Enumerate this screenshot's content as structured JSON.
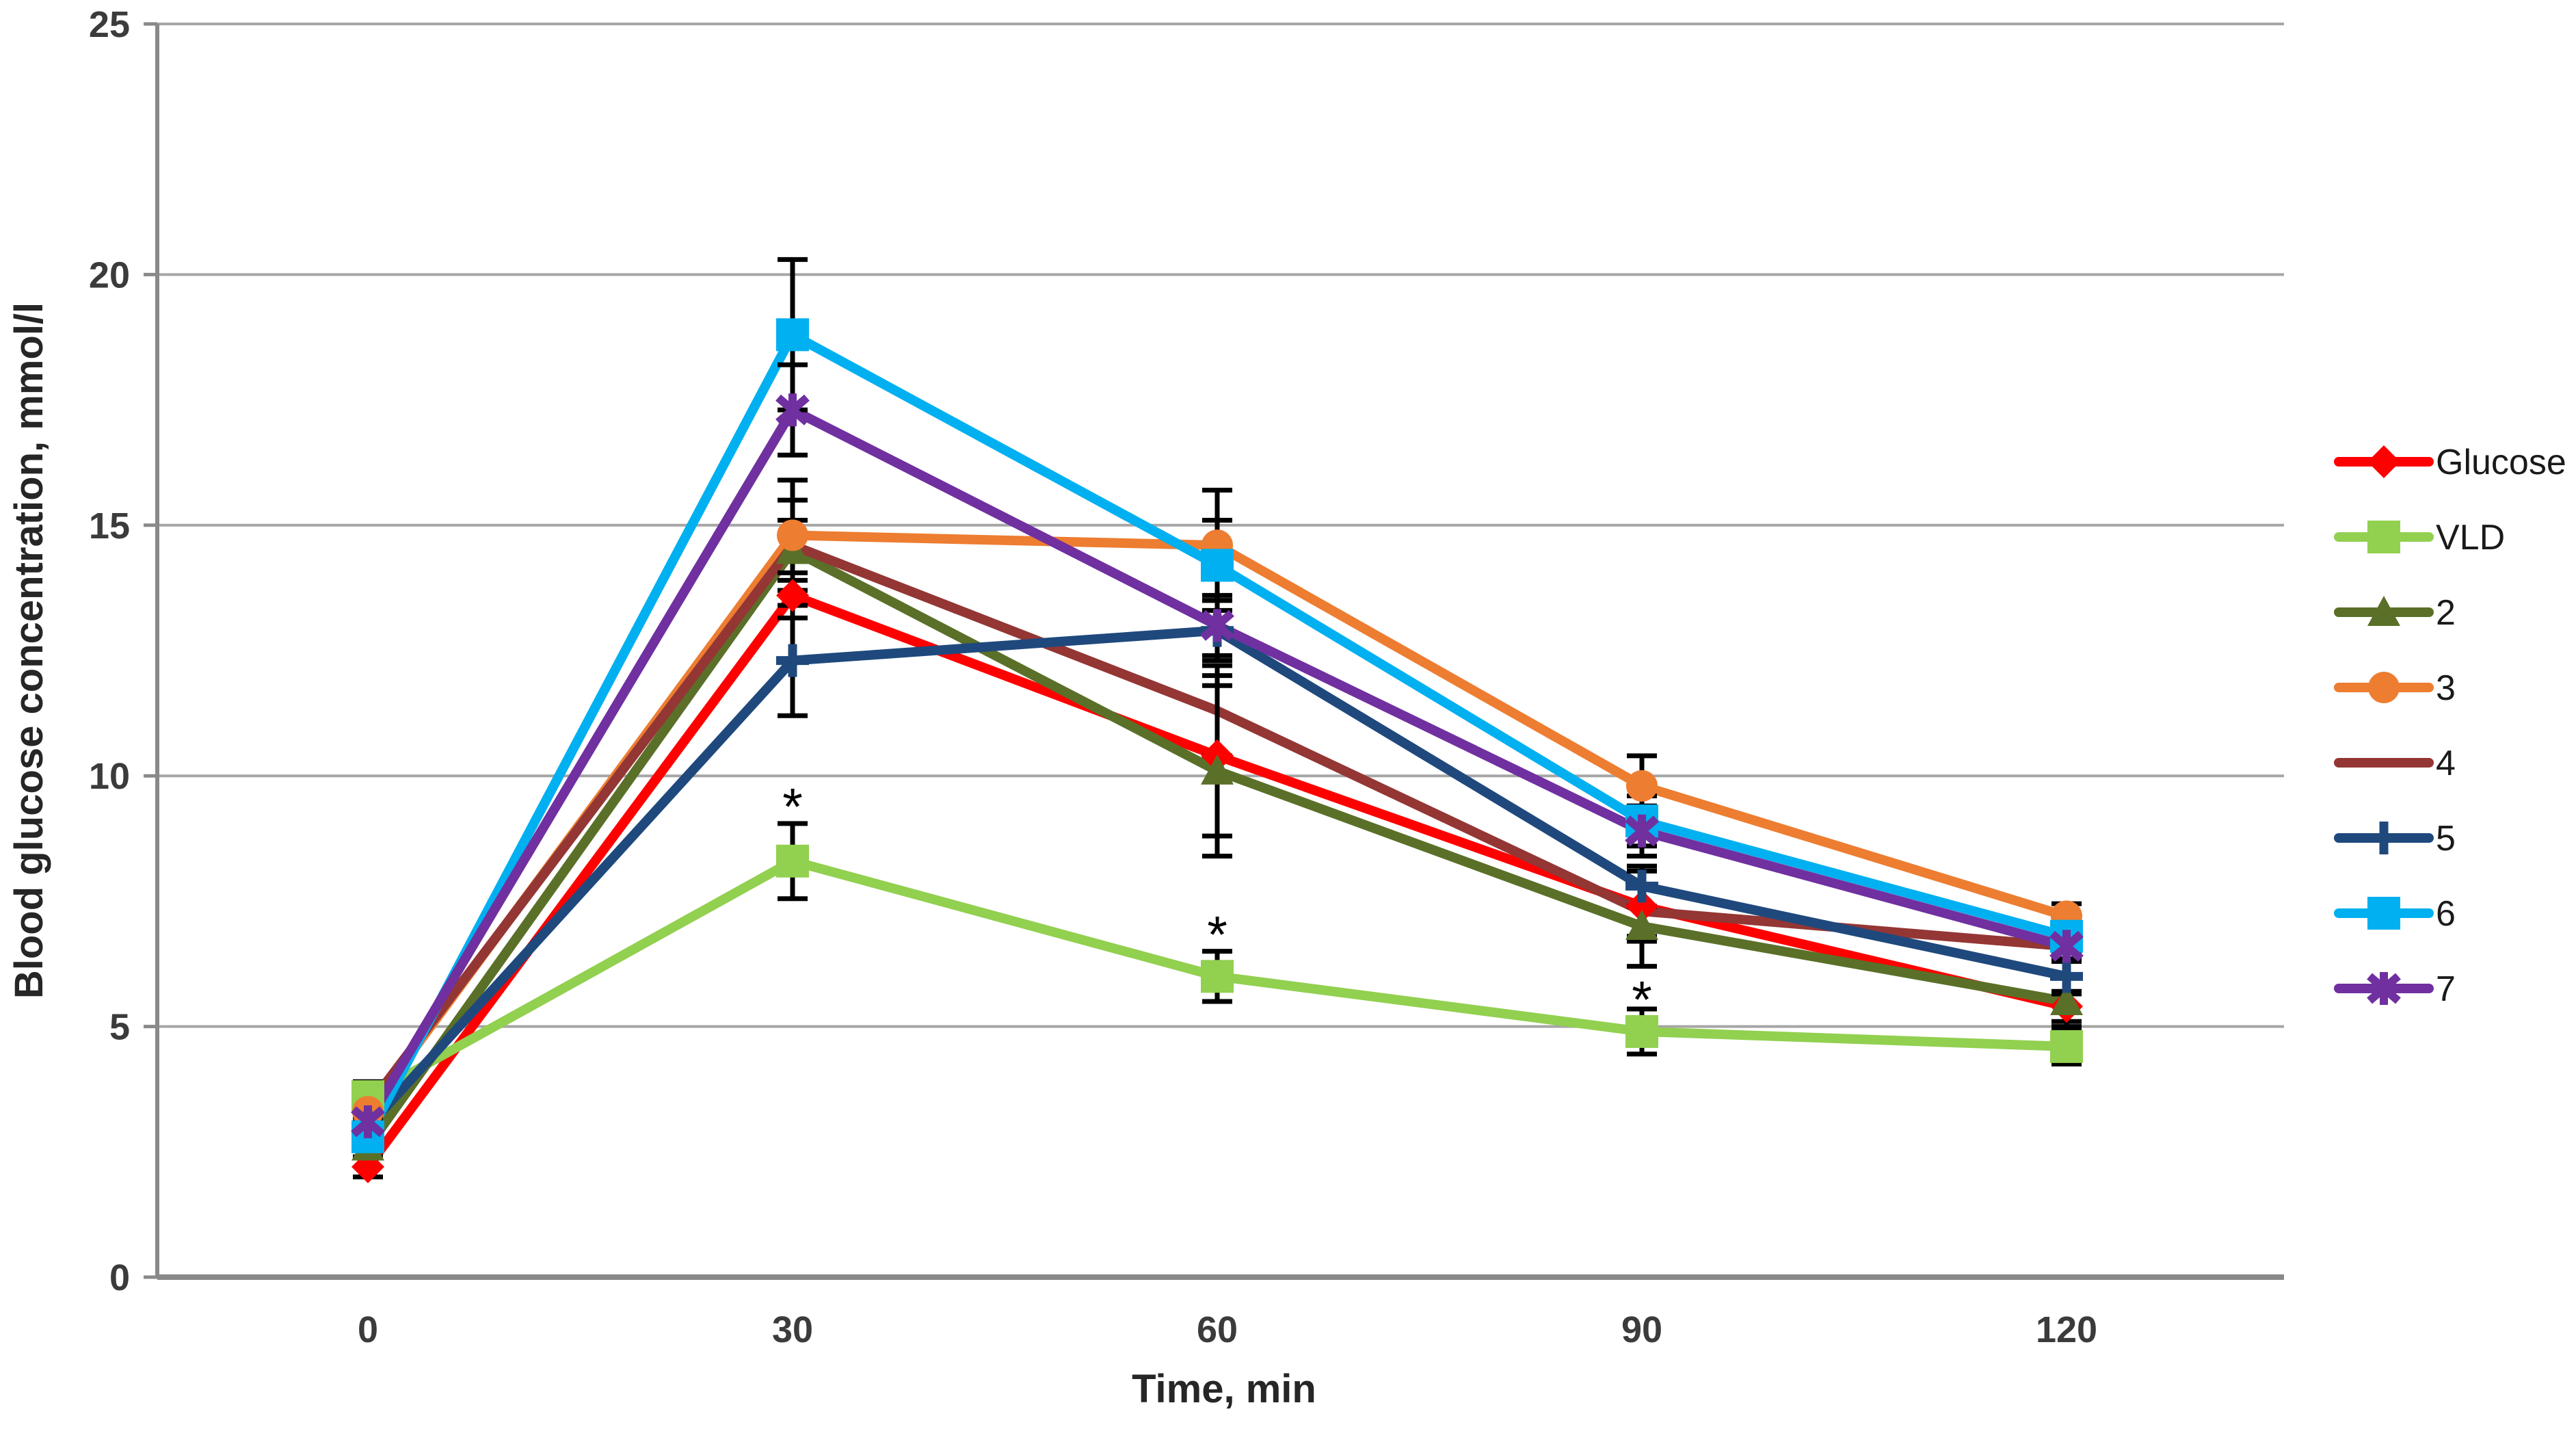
{
  "chart_data": {
    "type": "line",
    "title": "",
    "xlabel": "Time, min",
    "ylabel": "Blood glucose concentration, mmol/l",
    "x": [
      0,
      30,
      60,
      90,
      120
    ],
    "xtick_labels": [
      "0",
      "30",
      "60",
      "90",
      "120"
    ],
    "ylim": [
      0,
      25
    ],
    "yticks": [
      0,
      5,
      10,
      15,
      20,
      25
    ],
    "grid": true,
    "legend_position": "right",
    "series": [
      {
        "name": "Glucose",
        "color": "#FF0000",
        "marker": "diamond",
        "values": [
          2.2,
          13.6,
          10.4,
          7.4,
          5.4
        ],
        "errors": [
          0.2,
          0.45,
          1.6,
          0.7,
          0.3
        ]
      },
      {
        "name": "VLD",
        "color": "#92D050",
        "marker": "square",
        "values": [
          3.6,
          8.3,
          6.0,
          4.9,
          4.6
        ],
        "errors": [
          0.3,
          0.75,
          0.5,
          0.45,
          0.35
        ]
      },
      {
        "name": "2",
        "color": "#5A7028",
        "marker": "triangle",
        "values": [
          2.6,
          14.5,
          10.1,
          7.0,
          5.5
        ],
        "errors": [
          0.2,
          0.6,
          1.7,
          0.8,
          0.5
        ]
      },
      {
        "name": "3",
        "color": "#ED7D31",
        "marker": "circle",
        "values": [
          3.3,
          14.8,
          14.6,
          9.8,
          7.2
        ],
        "errors": [
          0.2,
          1.1,
          1.1,
          0.6,
          0.25
        ]
      },
      {
        "name": "4",
        "color": "#943634",
        "marker": "none",
        "values": [
          3.4,
          14.6,
          11.3,
          7.3,
          6.6
        ],
        "errors": [
          0.2,
          0.9,
          0.9,
          0.5,
          0.3
        ]
      },
      {
        "name": "5",
        "color": "#1F497D",
        "marker": "plus",
        "values": [
          3.0,
          12.3,
          12.9,
          7.8,
          6.0
        ],
        "errors": [
          0.2,
          1.1,
          0.6,
          0.4,
          0.35
        ]
      },
      {
        "name": "6",
        "color": "#00B0F0",
        "marker": "square",
        "values": [
          2.8,
          18.8,
          14.2,
          9.1,
          6.8
        ],
        "errors": [
          0.2,
          1.5,
          0.9,
          0.5,
          0.3
        ]
      },
      {
        "name": "7",
        "color": "#7030A0",
        "marker": "star",
        "values": [
          3.1,
          17.3,
          13.0,
          8.9,
          6.6
        ],
        "errors": [
          0.2,
          0.9,
          0.6,
          0.5,
          0.3
        ]
      }
    ],
    "annotations": [
      {
        "x": 30,
        "value": 9.6,
        "text": "*"
      },
      {
        "x": 60,
        "value": 7.05,
        "text": "*"
      },
      {
        "x": 90,
        "value": 5.75,
        "text": "*"
      }
    ],
    "style": {
      "gridline_color": "#A6A6A6",
      "axis_color": "#898989",
      "errorbar_color": "#000000"
    }
  }
}
